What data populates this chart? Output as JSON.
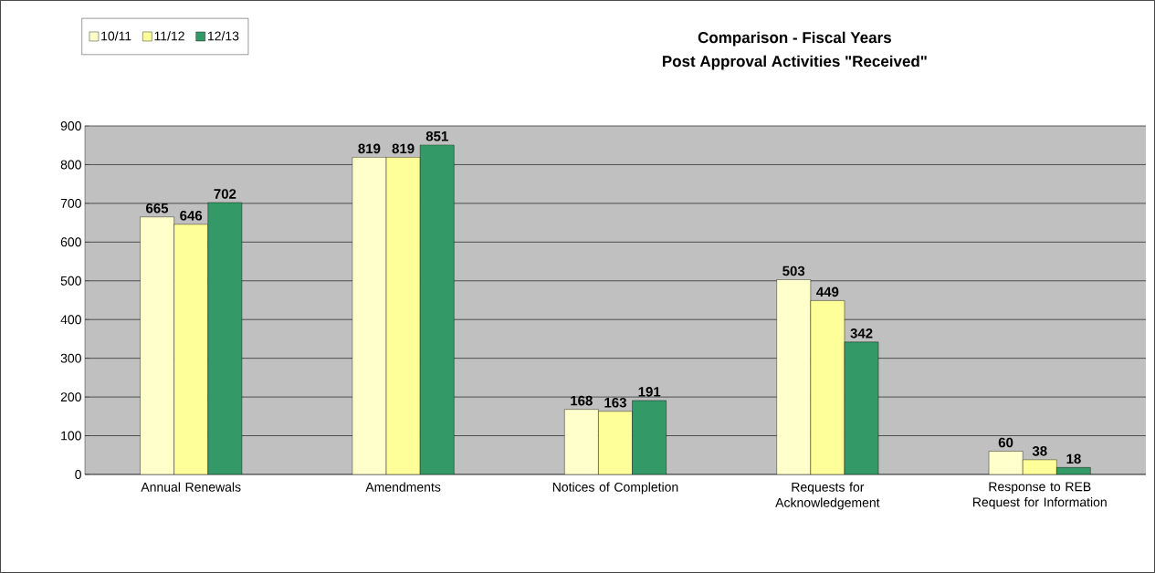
{
  "chart_data": {
    "type": "bar",
    "title": "Comparison - Fiscal Years",
    "subtitle": "Post Approval Activities \"Received\"",
    "categories": [
      "Annual Renewals",
      "Amendments",
      "Notices of Completion",
      "Requests for Acknowledgement",
      "Response to REB Request for Information"
    ],
    "series": [
      {
        "name": "10/11",
        "color": "#ffffcc",
        "values": [
          665,
          819,
          168,
          503,
          60
        ]
      },
      {
        "name": "11/12",
        "color": "#ffff99",
        "values": [
          646,
          819,
          163,
          449,
          38
        ]
      },
      {
        "name": "12/13",
        "color": "#339966",
        "values": [
          702,
          851,
          191,
          342,
          18
        ]
      }
    ],
    "ylim": [
      0,
      900
    ],
    "yticks": [
      0,
      100,
      200,
      300,
      400,
      500,
      600,
      700,
      800,
      900
    ],
    "grid": "y",
    "legend": "top left",
    "data_labels": true
  }
}
